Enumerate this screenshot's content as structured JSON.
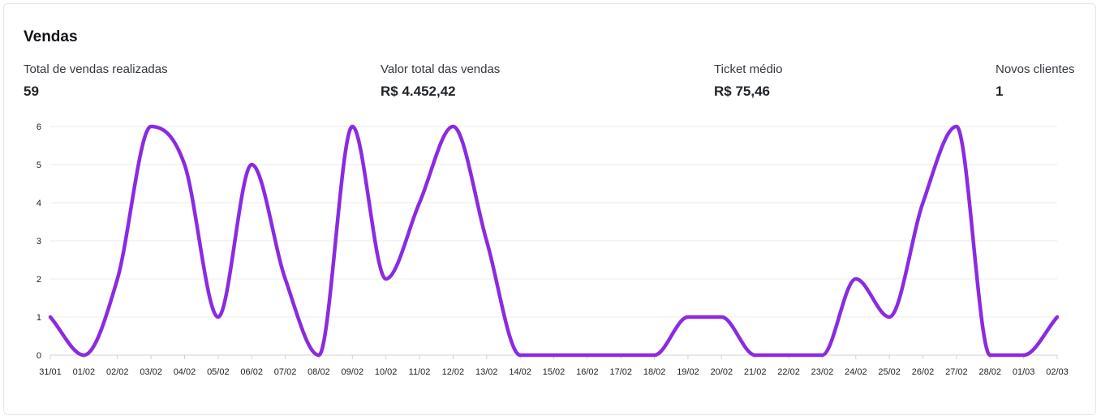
{
  "card": {
    "title": "Vendas"
  },
  "stats": [
    {
      "label": "Total de vendas realizadas",
      "value": "59"
    },
    {
      "label": "Valor total das vendas",
      "value": "R$ 4.452,42"
    },
    {
      "label": "Ticket médio",
      "value": "R$ 75,46"
    },
    {
      "label": "Novos clientes",
      "value": "1"
    }
  ],
  "colors": {
    "line": "#8a2be2",
    "grid": "#ebebeb",
    "axis": "#d0d0d0"
  },
  "chart_data": {
    "type": "line",
    "categories": [
      "31/01",
      "01/02",
      "02/02",
      "03/02",
      "04/02",
      "05/02",
      "06/02",
      "07/02",
      "08/02",
      "09/02",
      "10/02",
      "11/02",
      "12/02",
      "13/02",
      "14/02",
      "15/02",
      "16/02",
      "17/02",
      "18/02",
      "19/02",
      "20/02",
      "21/02",
      "22/02",
      "23/02",
      "24/02",
      "25/02",
      "26/02",
      "27/02",
      "28/02",
      "01/03",
      "02/03"
    ],
    "series": [
      {
        "values": [
          1,
          0,
          2,
          6,
          5,
          1,
          5,
          2,
          0,
          6,
          2,
          4,
          6,
          3,
          0,
          0,
          0,
          0,
          0,
          1,
          1,
          0,
          0,
          0,
          2,
          1,
          4,
          6,
          0,
          0,
          1
        ]
      }
    ],
    "yticks": [
      "0",
      "1",
      "2",
      "3",
      "4",
      "5",
      "6"
    ],
    "ylim": [
      0,
      6
    ],
    "grid": true,
    "legend": "none"
  }
}
